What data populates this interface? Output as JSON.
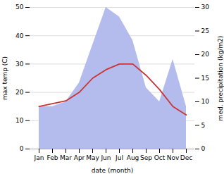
{
  "chart_data": {
    "type": "line",
    "categories": [
      "Jan",
      "Feb",
      "Mar",
      "Apr",
      "May",
      "Jun",
      "Jul",
      "Aug",
      "Sep",
      "Oct",
      "Nov",
      "Dec"
    ],
    "series": [
      {
        "type": "area",
        "axis": "y2",
        "color": "#b3bcec",
        "values": [
          9,
          9,
          10,
          14,
          22,
          30,
          28,
          23,
          13,
          10,
          19,
          9
        ]
      },
      {
        "type": "line",
        "color": "#cc3333",
        "values": [
          15,
          16,
          17,
          20,
          25,
          28,
          30,
          30,
          26,
          21,
          15,
          12
        ]
      }
    ],
    "xlabel": "date (month)",
    "ylabel": "max temp (C)",
    "y2label": "med. precipitation (kg/m2)",
    "ylim": [
      0,
      50
    ],
    "yticks": [
      0,
      10,
      20,
      30,
      40,
      50
    ],
    "y2lim": [
      0,
      30
    ],
    "y2ticks": [
      0,
      5,
      10,
      15,
      20,
      25,
      30
    ],
    "grid": true
  }
}
